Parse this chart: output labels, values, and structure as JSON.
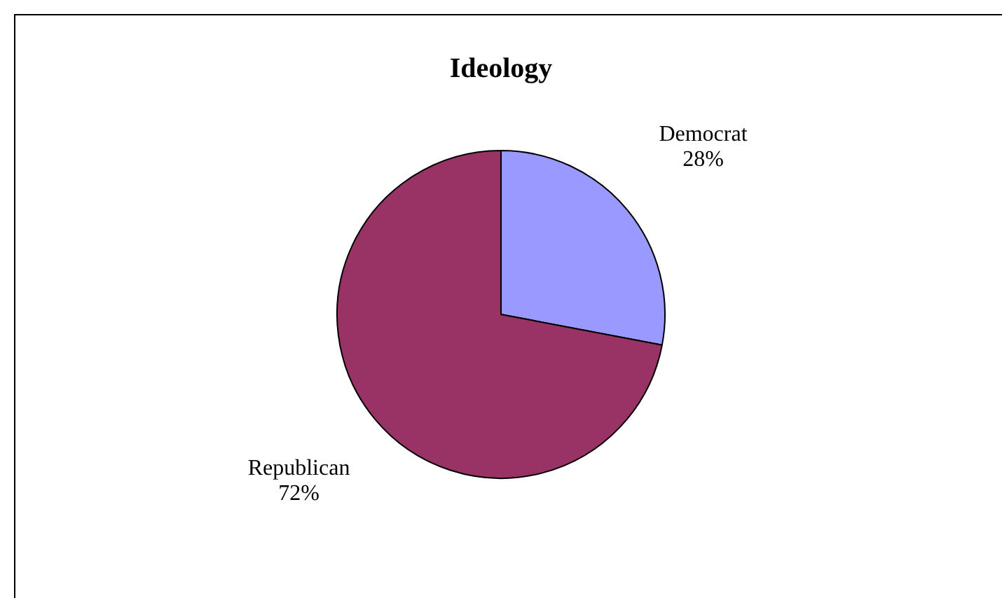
{
  "chart_data": {
    "type": "pie",
    "title": "Ideology",
    "categories": [
      "Democrat",
      "Republican"
    ],
    "values": [
      28,
      72
    ],
    "colors": [
      "#9999ff",
      "#993366"
    ],
    "value_labels": [
      "28%",
      "72%"
    ],
    "legend": false
  }
}
